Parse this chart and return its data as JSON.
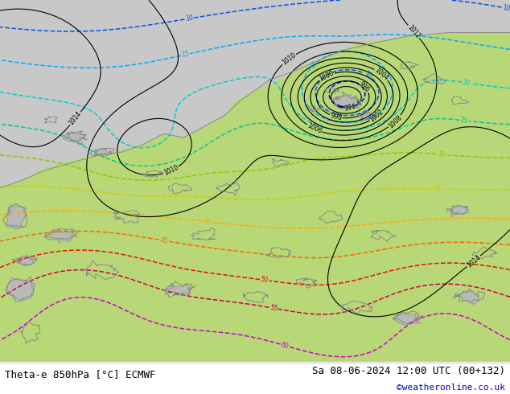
{
  "title_left": "Theta-e 850hPa [°C] ECMWF",
  "title_right": "Sa 08-06-2024 12:00 UTC (00+132)",
  "copyright": "©weatheronline.co.uk",
  "fig_width": 6.34,
  "fig_height": 4.9,
  "dpi": 100,
  "bg_color": "#ffffff",
  "bottom_bar_height": 0.082,
  "font_size_title": 9,
  "font_size_copyright": 8,
  "bottom_text_color": "#000000",
  "copyright_color": "#0000cc",
  "gray_bg": "#c8c8c8",
  "green_bg": "#b8d878",
  "coast_color": "#888888",
  "theta_colors": {
    "5": "#0000cc",
    "10": "#0055ee",
    "15": "#00aaff",
    "20": "#00cccc",
    "25": "#00cc88",
    "30": "#88cc00",
    "35": "#cccc00",
    "40": "#ffaa00",
    "45": "#ff6600",
    "50": "#ee1100",
    "55": "#cc0044",
    "60": "#cc00cc"
  }
}
